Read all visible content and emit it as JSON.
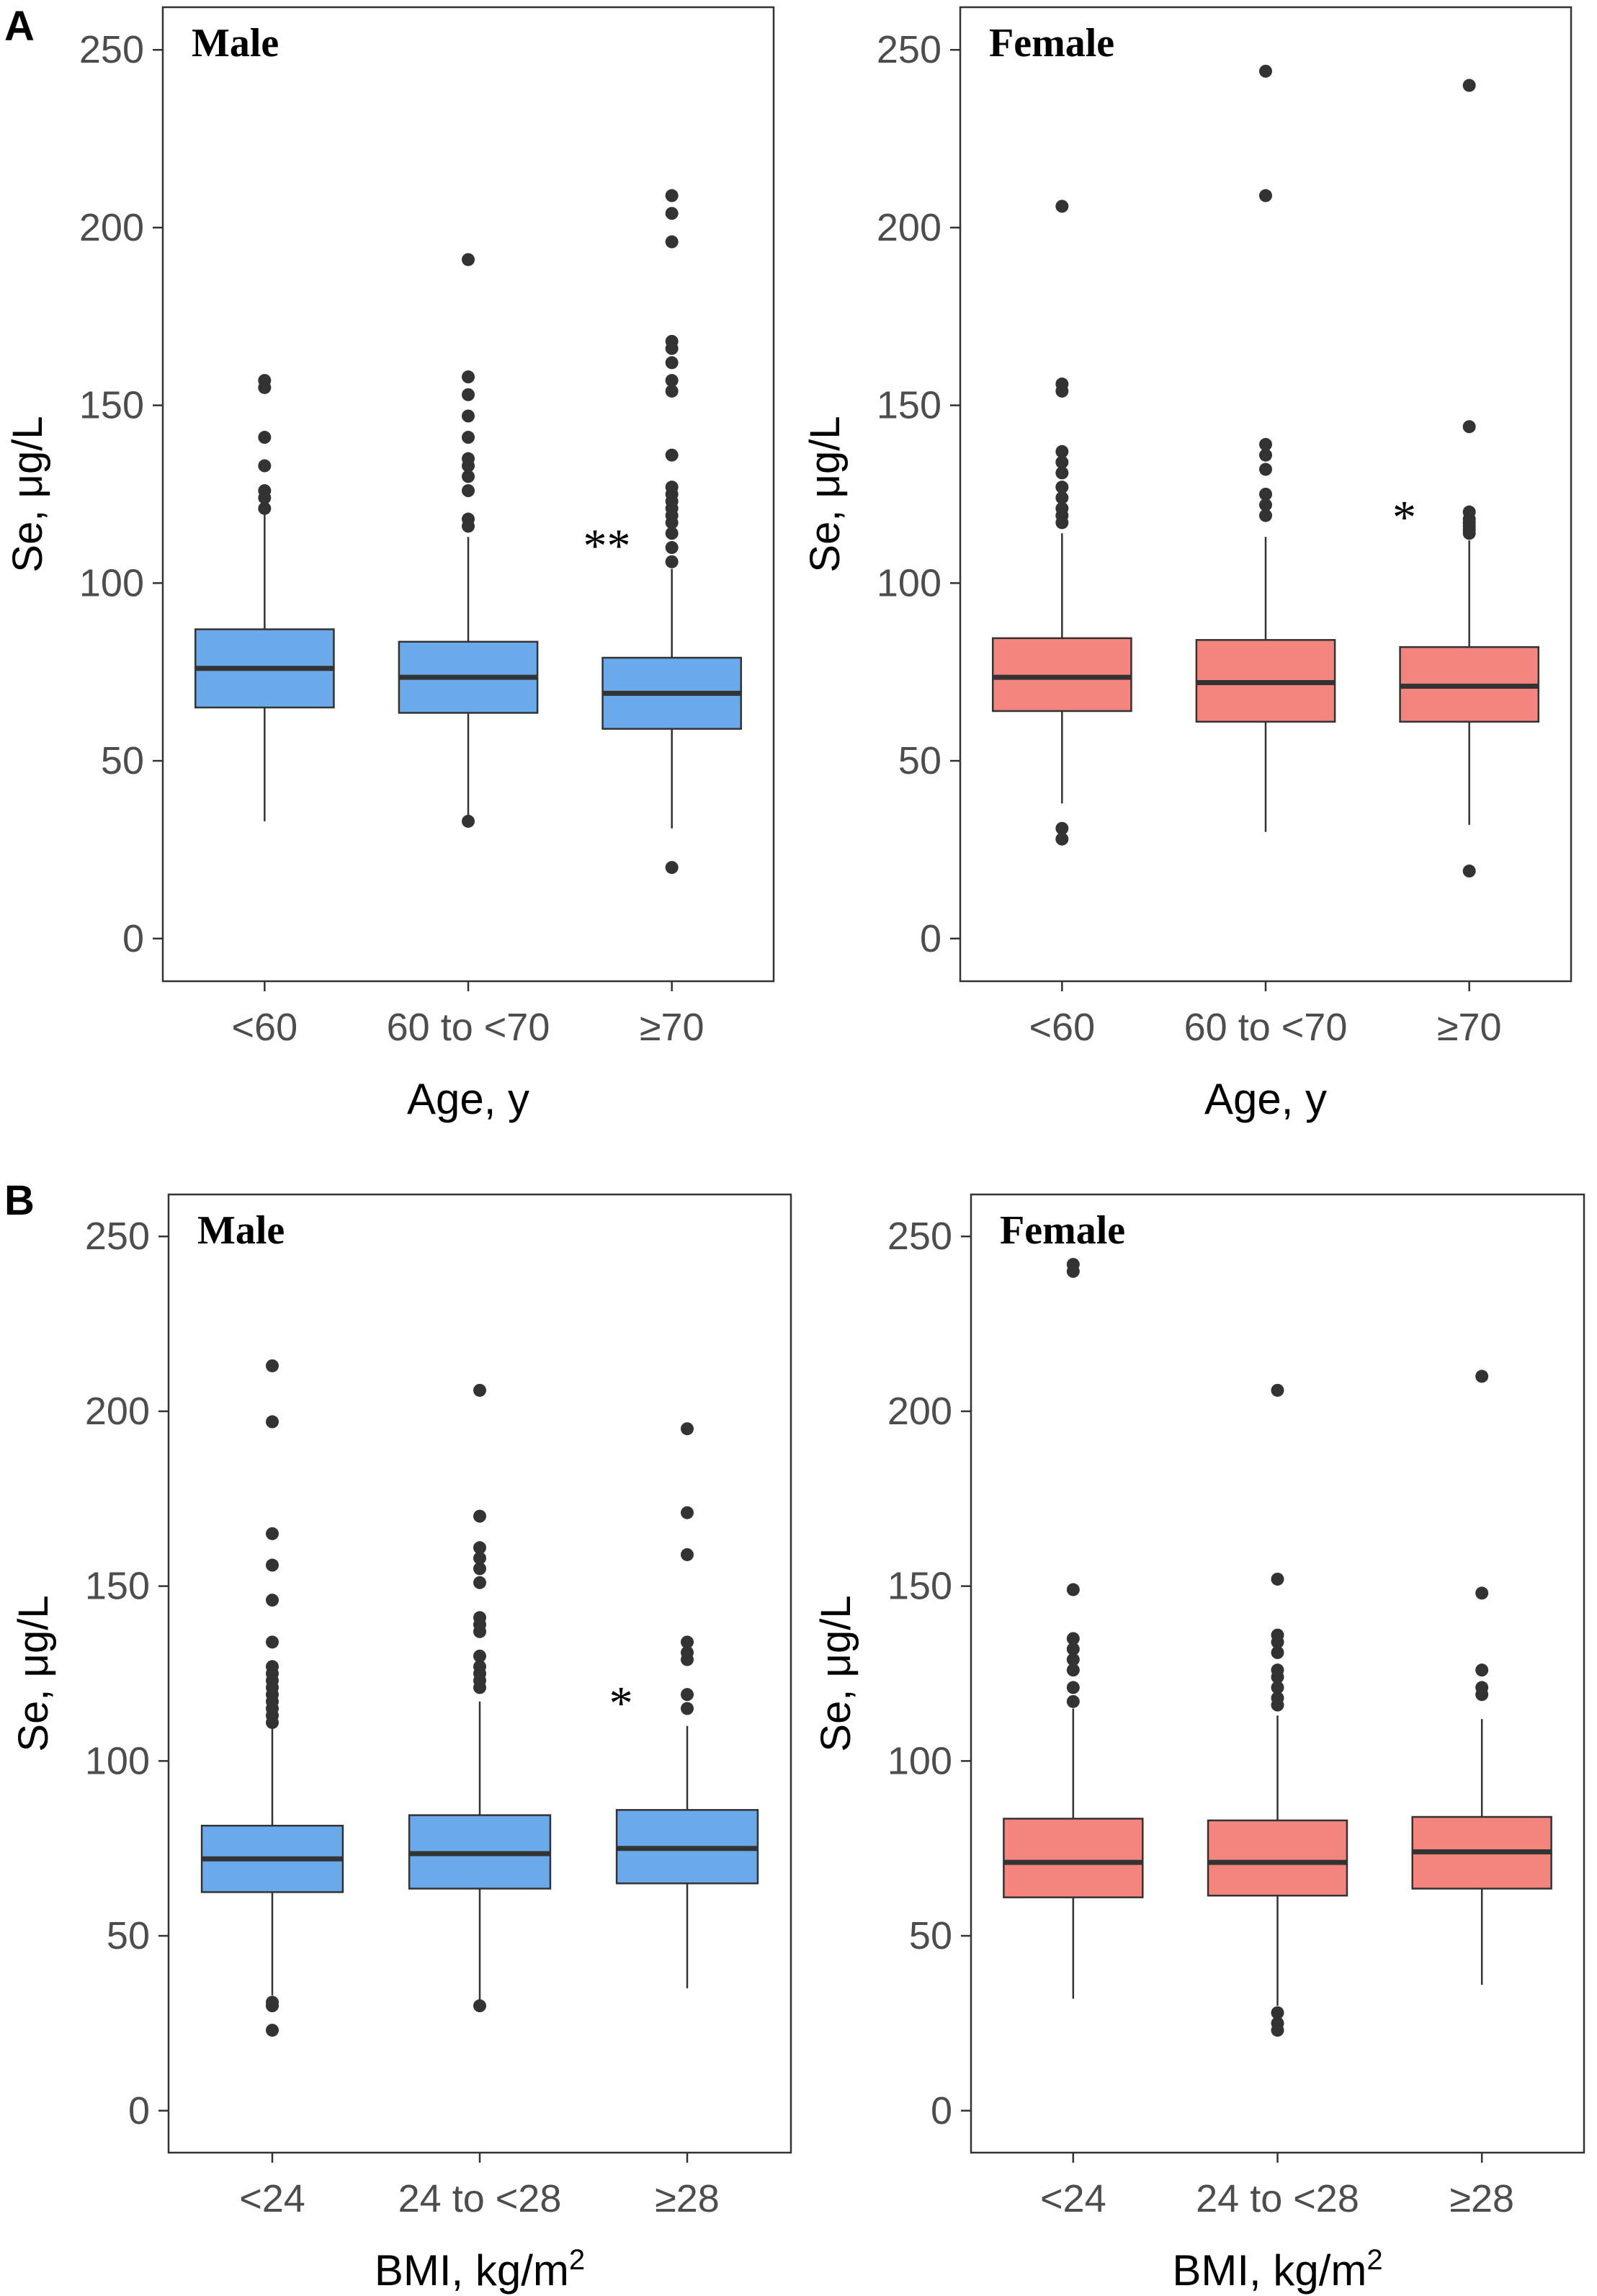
{
  "panel_labels": [
    "A",
    "B"
  ],
  "chart_data": [
    {
      "type": "box",
      "panel": "A",
      "title": "Male",
      "xlabel": "Age, y",
      "ylabel": "Se, μg/L",
      "ylim": [
        -12,
        262
      ],
      "yticks": [
        0,
        50,
        100,
        150,
        200,
        250
      ],
      "categories": [
        "<60",
        "60 to <70",
        "≥70"
      ],
      "fill_color": "#6aaaea",
      "boxes": [
        {
          "q1": 65,
          "median": 76,
          "q3": 87,
          "whisker_low": 33,
          "whisker_high": 120,
          "outliers": [
            121,
            124,
            126,
            133,
            141,
            155,
            157
          ],
          "sig": ""
        },
        {
          "q1": 63.5,
          "median": 73.5,
          "q3": 83.5,
          "whisker_low": 33.5,
          "whisker_high": 113,
          "outliers": [
            33,
            116,
            118,
            126,
            130,
            133,
            135,
            141,
            147,
            153,
            158,
            191
          ],
          "sig": ""
        },
        {
          "q1": 59,
          "median": 69,
          "q3": 79,
          "whisker_low": 31,
          "whisker_high": 104,
          "outliers": [
            20,
            106,
            110,
            114,
            117,
            119,
            121,
            123,
            125,
            127,
            136,
            154,
            157,
            162,
            166,
            168,
            196,
            204,
            209
          ],
          "sig": "**"
        }
      ]
    },
    {
      "type": "box",
      "panel": "A",
      "title": "Female",
      "xlabel": "Age, y",
      "ylabel": "Se, μg/L",
      "ylim": [
        -12,
        262
      ],
      "yticks": [
        0,
        50,
        100,
        150,
        200,
        250
      ],
      "categories": [
        "<60",
        "60 to <70",
        "≥70"
      ],
      "fill_color": "#f4847e",
      "boxes": [
        {
          "q1": 64,
          "median": 73.5,
          "q3": 84.5,
          "whisker_low": 38,
          "whisker_high": 114,
          "outliers": [
            28,
            31,
            117,
            119,
            121,
            124,
            127,
            131,
            134,
            137,
            154,
            156,
            206
          ],
          "sig": ""
        },
        {
          "q1": 61,
          "median": 72,
          "q3": 84,
          "whisker_low": 30,
          "whisker_high": 113,
          "outliers": [
            119,
            122,
            125,
            132,
            136,
            139,
            209,
            244
          ],
          "sig": ""
        },
        {
          "q1": 61,
          "median": 71,
          "q3": 82,
          "whisker_low": 32,
          "whisker_high": 112,
          "outliers": [
            19,
            114,
            115,
            116,
            117,
            118,
            120,
            144,
            240
          ],
          "sig": "*"
        }
      ]
    },
    {
      "type": "box",
      "panel": "B",
      "title": "Male",
      "xlabel": "BMI, kg/m",
      "xlabel_sup": "2",
      "ylabel": "Se, μg/L",
      "ylim": [
        -12,
        262
      ],
      "yticks": [
        0,
        50,
        100,
        150,
        200,
        250
      ],
      "categories": [
        "<24",
        "24 to <28",
        "≥28"
      ],
      "fill_color": "#6aaaea",
      "boxes": [
        {
          "q1": 62.5,
          "median": 72,
          "q3": 81.5,
          "whisker_low": 33,
          "whisker_high": 110,
          "outliers": [
            23,
            30,
            31,
            111,
            113,
            115,
            117,
            119,
            121,
            123,
            125,
            127,
            134,
            146,
            156,
            165,
            197,
            213
          ],
          "sig": ""
        },
        {
          "q1": 63.5,
          "median": 73.5,
          "q3": 84.5,
          "whisker_low": 30,
          "whisker_high": 117,
          "outliers": [
            30,
            121,
            123,
            125,
            127,
            130,
            137,
            139,
            141,
            151,
            155,
            158,
            161,
            170,
            206
          ],
          "sig": ""
        },
        {
          "q1": 65,
          "median": 75,
          "q3": 86,
          "whisker_low": 35,
          "whisker_high": 110,
          "outliers": [
            115,
            119,
            129,
            131,
            134,
            159,
            171,
            195
          ],
          "sig": "*"
        }
      ]
    },
    {
      "type": "box",
      "panel": "B",
      "title": "Female",
      "xlabel": "BMI, kg/m",
      "xlabel_sup": "2",
      "ylabel": "Se, μg/L",
      "ylim": [
        -12,
        262
      ],
      "yticks": [
        0,
        50,
        100,
        150,
        200,
        250
      ],
      "categories": [
        "<24",
        "24 to <28",
        "≥28"
      ],
      "fill_color": "#f4847e",
      "boxes": [
        {
          "q1": 61,
          "median": 71,
          "q3": 83.5,
          "whisker_low": 32,
          "whisker_high": 115,
          "outliers": [
            117,
            121,
            126,
            129,
            132,
            135,
            149,
            240,
            242
          ],
          "sig": ""
        },
        {
          "q1": 61.5,
          "median": 71,
          "q3": 83,
          "whisker_low": 30,
          "whisker_high": 113,
          "outliers": [
            23,
            25,
            28,
            116,
            118,
            121,
            124,
            126,
            131,
            134,
            136,
            152,
            206
          ],
          "sig": ""
        },
        {
          "q1": 63.5,
          "median": 74,
          "q3": 84,
          "whisker_low": 36,
          "whisker_high": 112,
          "outliers": [
            119,
            121,
            126,
            148,
            210
          ],
          "sig": ""
        }
      ]
    }
  ]
}
